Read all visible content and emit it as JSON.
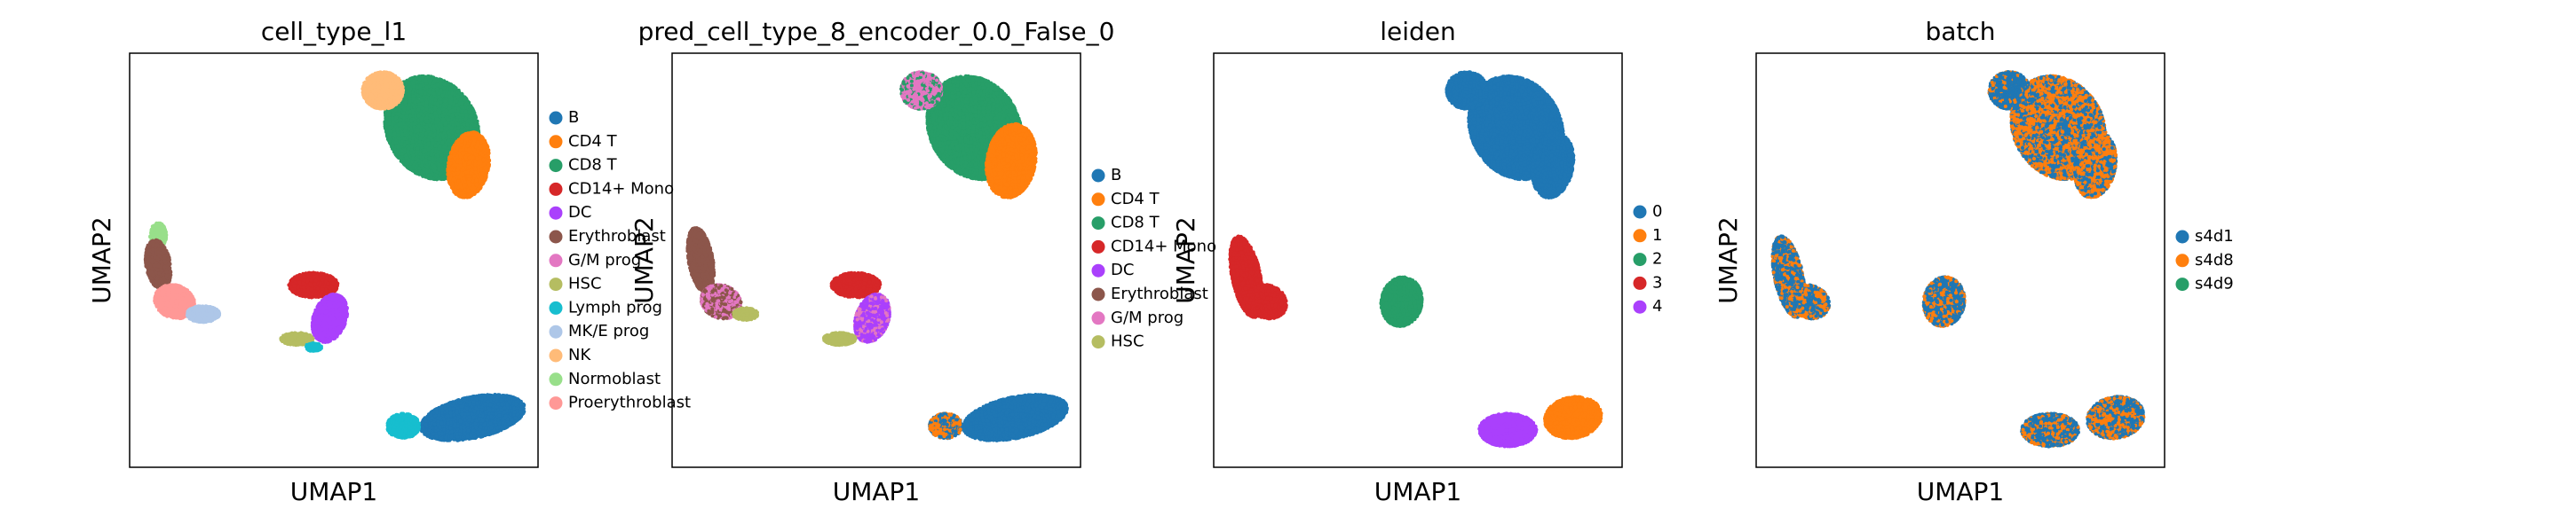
{
  "panels": [
    {
      "title": "cell_type_l1",
      "xlabel": "UMAP1",
      "ylabel": "UMAP2",
      "legend": [
        {
          "label": "B",
          "color": "#1f77b4"
        },
        {
          "label": "CD4 T",
          "color": "#ff7f0e"
        },
        {
          "label": "CD8 T",
          "color": "#279e68"
        },
        {
          "label": "CD14+ Mono",
          "color": "#d62728"
        },
        {
          "label": "DC",
          "color": "#aa40fc"
        },
        {
          "label": "Erythroblast",
          "color": "#8c564b"
        },
        {
          "label": "G/M prog",
          "color": "#e377c2"
        },
        {
          "label": "HSC",
          "color": "#b5bd61"
        },
        {
          "label": "Lymph prog",
          "color": "#17becf"
        },
        {
          "label": "MK/E prog",
          "color": "#aec7e8"
        },
        {
          "label": "NK",
          "color": "#ffbb78"
        },
        {
          "label": "Normoblast",
          "color": "#98df8a"
        },
        {
          "label": "Proerythroblast",
          "color": "#ff9896"
        }
      ]
    },
    {
      "title": "pred_cell_type_8_encoder_0.0_False_0",
      "xlabel": "UMAP1",
      "ylabel": "UMAP2",
      "legend": [
        {
          "label": "B",
          "color": "#1f77b4"
        },
        {
          "label": "CD4 T",
          "color": "#ff7f0e"
        },
        {
          "label": "CD8 T",
          "color": "#279e68"
        },
        {
          "label": "CD14+ Mono",
          "color": "#d62728"
        },
        {
          "label": "DC",
          "color": "#aa40fc"
        },
        {
          "label": "Erythroblast",
          "color": "#8c564b"
        },
        {
          "label": "G/M prog",
          "color": "#e377c2"
        },
        {
          "label": "HSC",
          "color": "#b5bd61"
        }
      ]
    },
    {
      "title": "leiden",
      "xlabel": "UMAP1",
      "ylabel": "UMAP2",
      "legend": [
        {
          "label": "0",
          "color": "#1f77b4"
        },
        {
          "label": "1",
          "color": "#ff7f0e"
        },
        {
          "label": "2",
          "color": "#279e68"
        },
        {
          "label": "3",
          "color": "#d62728"
        },
        {
          "label": "4",
          "color": "#aa40fc"
        }
      ]
    },
    {
      "title": "batch",
      "xlabel": "UMAP1",
      "ylabel": "UMAP2",
      "legend": [
        {
          "label": "s4d1",
          "color": "#1f77b4"
        },
        {
          "label": "s4d8",
          "color": "#ff7f0e"
        },
        {
          "label": "s4d9",
          "color": "#279e68"
        }
      ]
    }
  ]
}
